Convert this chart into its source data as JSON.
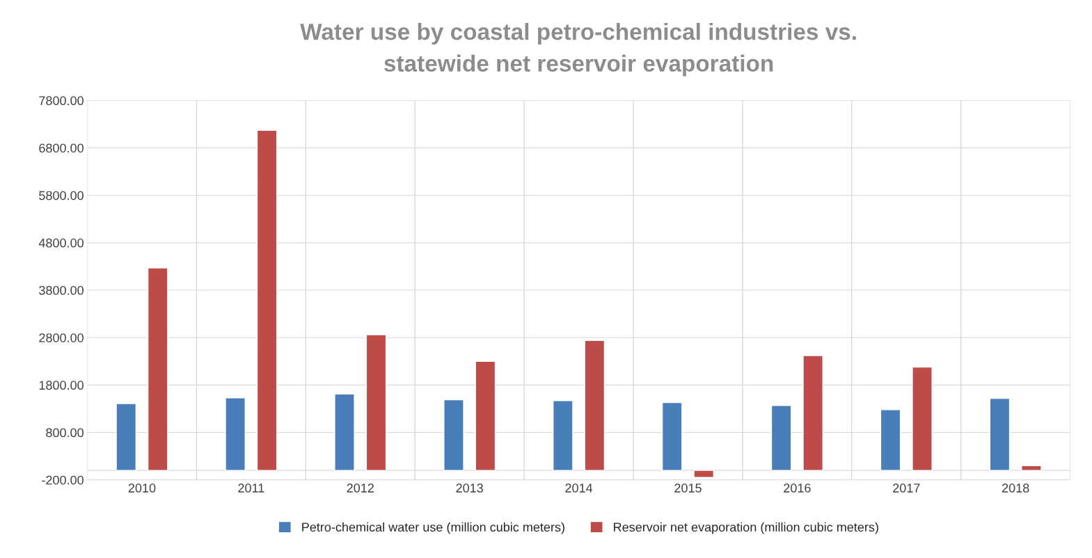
{
  "chart_data": {
    "type": "bar",
    "title": "Water use by coastal petro-chemical industries vs.\nstatewide net reservoir evaporation",
    "categories": [
      "2010",
      "2011",
      "2012",
      "2013",
      "2014",
      "2015",
      "2016",
      "2017",
      "2018"
    ],
    "series": [
      {
        "name": "Petro-chemical water use (million cubic meters)",
        "color": "#4a7ebb",
        "values": [
          1410,
          1530,
          1610,
          1490,
          1470,
          1430,
          1370,
          1280,
          1520
        ]
      },
      {
        "name": "Reservoir net evaporation (million cubic meters)",
        "color": "#be4b48",
        "values": [
          4270,
          7170,
          2860,
          2300,
          2740,
          -150,
          2420,
          2180,
          100
        ]
      }
    ],
    "ylim": [
      -200,
      7800
    ],
    "yticks": [
      {
        "value": -200,
        "label": "-200.00"
      },
      {
        "value": 800,
        "label": "800.00"
      },
      {
        "value": 1800,
        "label": "1800.00"
      },
      {
        "value": 2800,
        "label": "2800.00"
      },
      {
        "value": 3800,
        "label": "3800.00"
      },
      {
        "value": 4800,
        "label": "4800.00"
      },
      {
        "value": 5800,
        "label": "5800.00"
      },
      {
        "value": 6800,
        "label": "6800.00"
      },
      {
        "value": 7800,
        "label": "7800.00"
      }
    ],
    "grid": true,
    "legend": "bottom"
  }
}
